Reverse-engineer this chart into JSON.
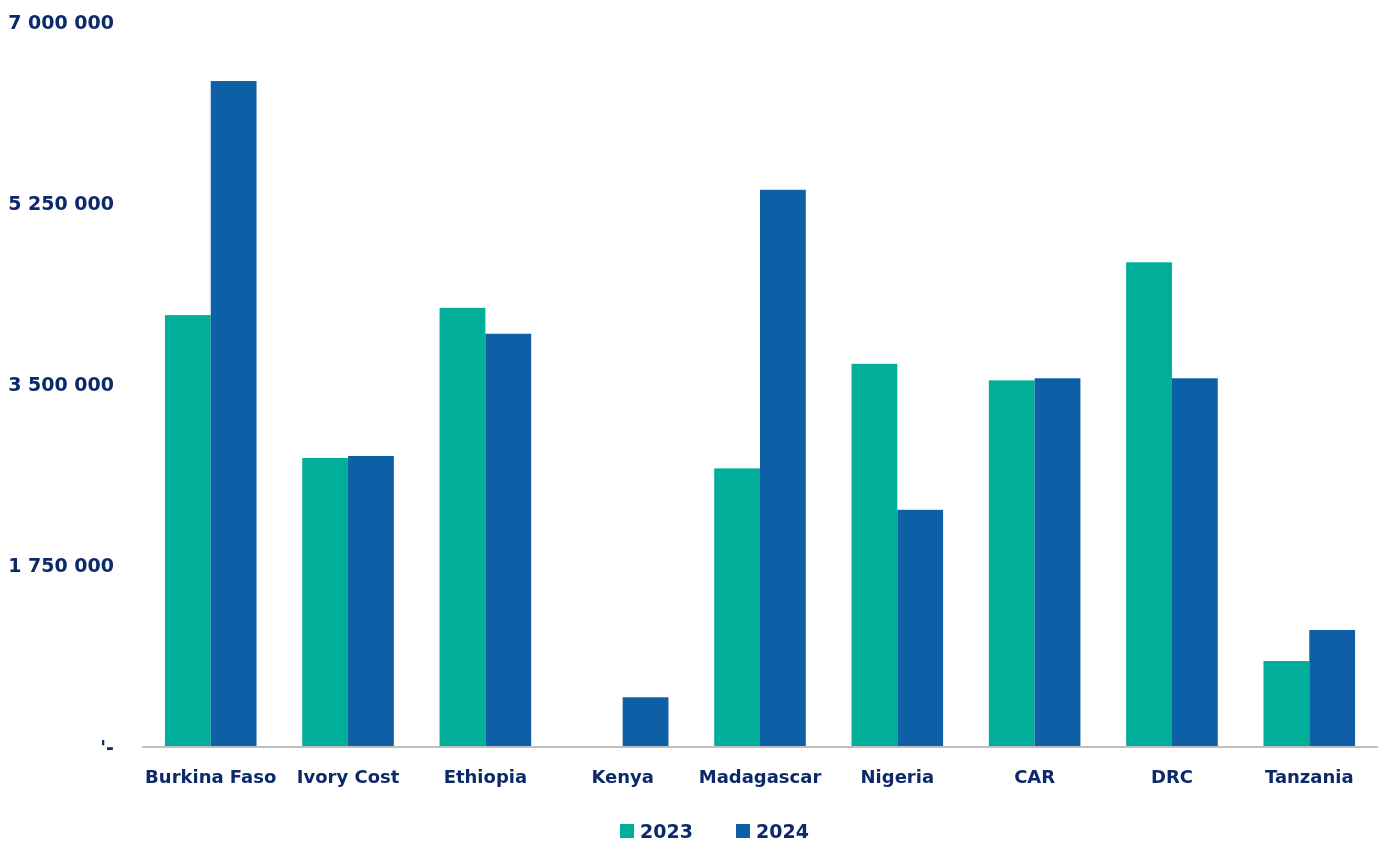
{
  "chart_data": {
    "type": "bar",
    "categories": [
      "Burkina Faso",
      "Ivory Cost",
      "Ethiopia",
      "Kenya",
      "Madagascar",
      "Nigeria",
      "CAR",
      "DRC",
      "Tanzania"
    ],
    "series": [
      {
        "name": "2023",
        "color": "#00ae9a",
        "values": [
          4170000,
          2790000,
          4240000,
          0,
          2690000,
          3700000,
          3540000,
          4680000,
          830000
        ]
      },
      {
        "name": "2024",
        "color": "#0d5fa6",
        "values": [
          6430000,
          2810000,
          3990000,
          480000,
          5380000,
          2290000,
          3560000,
          3560000,
          1130000
        ]
      }
    ],
    "ylim": [
      0,
      7000000
    ],
    "yticks": [
      {
        "value": 0,
        "label": "'-"
      },
      {
        "value": 1750000,
        "label": "1 750 000"
      },
      {
        "value": 3500000,
        "label": "3 500 000"
      },
      {
        "value": 5250000,
        "label": "5 250 000"
      },
      {
        "value": 7000000,
        "label": "7 000 000"
      }
    ],
    "grid": false,
    "legend": "bottom"
  }
}
